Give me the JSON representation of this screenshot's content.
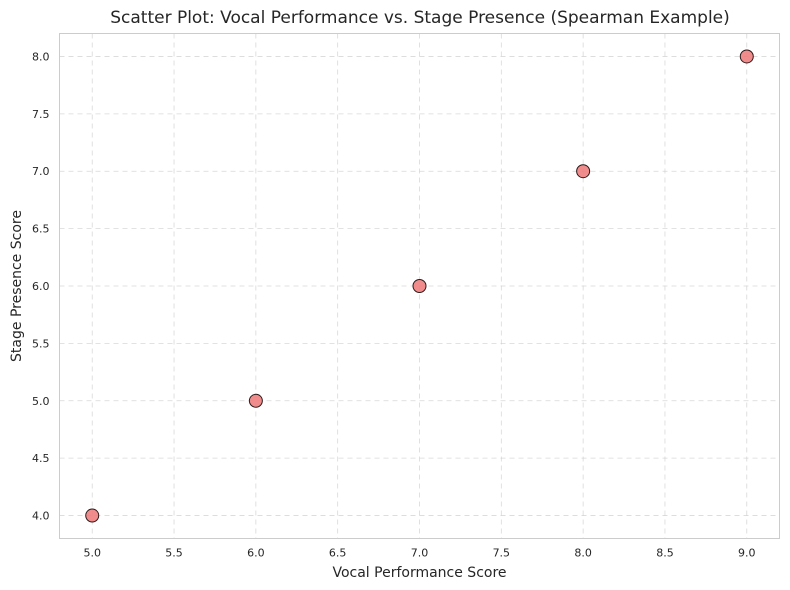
{
  "chart_data": {
    "type": "scatter",
    "title": "Scatter Plot: Vocal Performance vs. Stage Presence (Spearman Example)",
    "xlabel": "Vocal Performance Score",
    "ylabel": "Stage Presence Score",
    "x": [
      5,
      6,
      7,
      8,
      9
    ],
    "y": [
      4,
      5,
      6,
      7,
      8
    ],
    "xlim": [
      4.8,
      9.2
    ],
    "ylim": [
      3.8,
      8.2
    ],
    "xticks": [
      "5.0",
      "5.5",
      "6.0",
      "6.5",
      "7.0",
      "7.5",
      "8.0",
      "8.5",
      "9.0"
    ],
    "yticks": [
      "4.0",
      "4.5",
      "5.0",
      "5.5",
      "6.0",
      "6.5",
      "7.0",
      "7.5",
      "8.0"
    ],
    "grid": true,
    "marker_color": "#f08080",
    "marker_edge_color": "#2b1a1a"
  }
}
